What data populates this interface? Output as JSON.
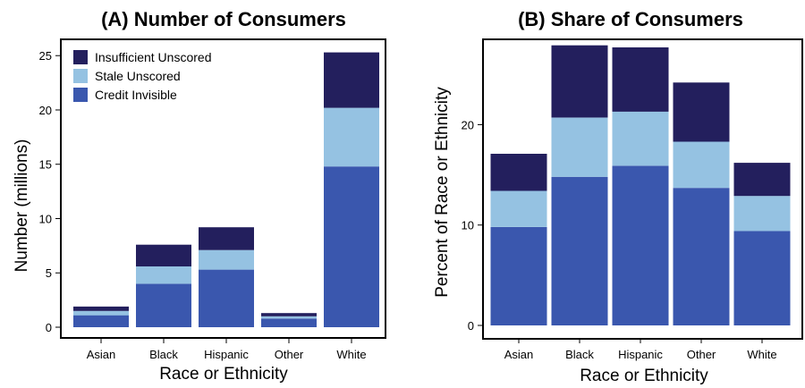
{
  "colors": {
    "Credit Invisible": "#3a57ae",
    "Stale Unscored": "#95c2e2",
    "Insufficient Unscored": "#231f5d"
  },
  "chart_data": [
    {
      "type": "bar",
      "stacked": true,
      "title": "(A) Number of Consumers",
      "xlabel": "Race or Ethnicity",
      "ylabel": "Number (millions)",
      "categories": [
        "Asian",
        "Black",
        "Hispanic",
        "Other",
        "White"
      ],
      "ylim": [
        0,
        26.5
      ],
      "yticks": [
        0,
        5,
        10,
        15,
        20,
        25
      ],
      "legend": {
        "position": "top-left",
        "order": [
          "Insufficient Unscored",
          "Stale Unscored",
          "Credit Invisible"
        ]
      },
      "series": [
        {
          "name": "Credit Invisible",
          "values": [
            1.1,
            4.0,
            5.3,
            0.8,
            14.8
          ]
        },
        {
          "name": "Stale Unscored",
          "values": [
            0.4,
            1.6,
            1.8,
            0.2,
            5.4
          ]
        },
        {
          "name": "Insufficient Unscored",
          "values": [
            0.4,
            2.0,
            2.1,
            0.3,
            5.1
          ]
        }
      ]
    },
    {
      "type": "bar",
      "stacked": true,
      "title": "(B) Share of Consumers",
      "xlabel": "Race or Ethnicity",
      "ylabel": "Percent of Race or Ethnicity",
      "categories": [
        "Asian",
        "Black",
        "Hispanic",
        "Other",
        "White"
      ],
      "ylim": [
        0,
        28.5
      ],
      "yticks": [
        0,
        10,
        20
      ],
      "series": [
        {
          "name": "Credit Invisible",
          "values": [
            9.8,
            14.8,
            15.9,
            13.7,
            9.4
          ]
        },
        {
          "name": "Stale Unscored",
          "values": [
            3.6,
            5.9,
            5.4,
            4.6,
            3.5
          ]
        },
        {
          "name": "Insufficient Unscored",
          "values": [
            3.7,
            7.2,
            6.4,
            5.9,
            3.3
          ]
        }
      ]
    }
  ]
}
